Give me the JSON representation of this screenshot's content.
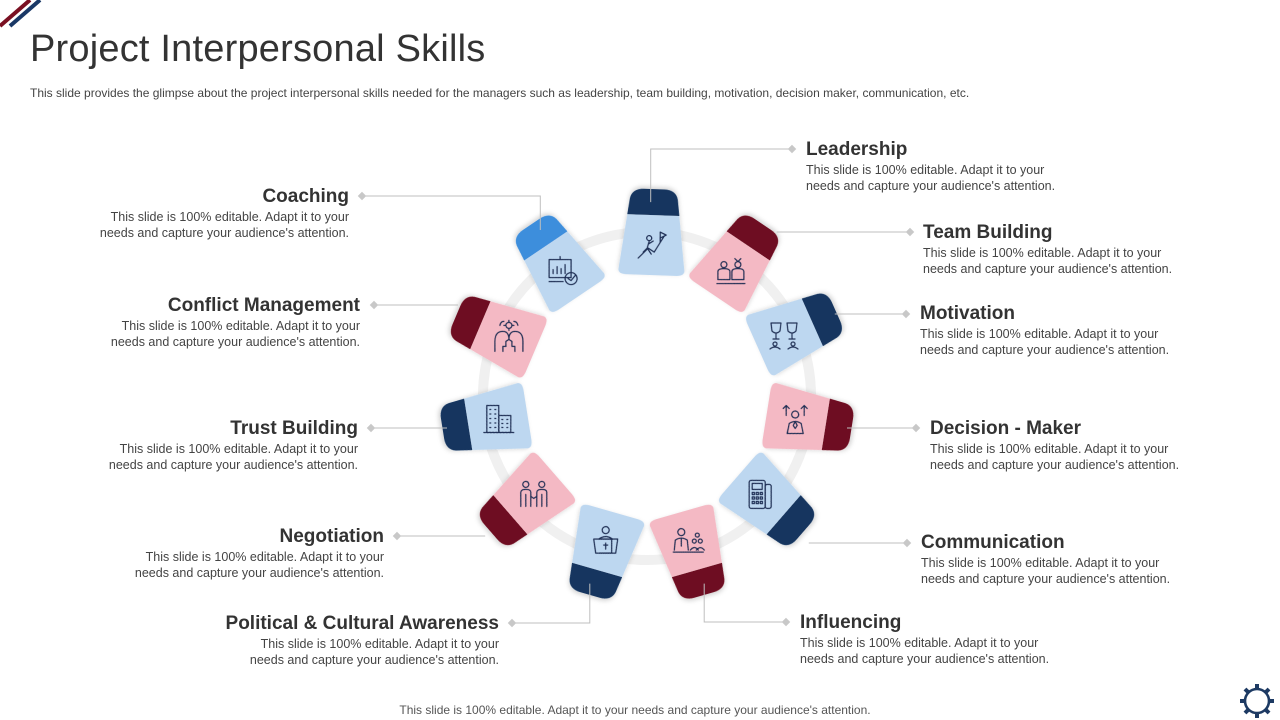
{
  "title": "Project Interpersonal Skills",
  "subtitle": "This slide provides the glimpse about the project interpersonal skills needed for the managers such as leadership, team building, motivation, decision maker, communication, etc.",
  "footer": "This slide is 100% editable. Adapt it to your needs and capture your audience's attention.",
  "colors": {
    "light_blue": "#bdd7f0",
    "light_pink": "#f4b9c4",
    "navy": "#13355e",
    "maroon": "#6e1020",
    "bright_blue": "#3c8edc",
    "ring": "#f0f0f0",
    "icon_stroke": "#1f2f56"
  },
  "skills": [
    {
      "name": "Leadership",
      "line1": "This slide is 100% editable. Adapt it to your",
      "line2": "needs and capture your audience's attention.",
      "color": "blue",
      "icon": "climber-flag-icon"
    },
    {
      "name": "Team Building",
      "line1": "This slide is 100% editable. Adapt it to your",
      "line2": "needs and capture your audience's attention.",
      "color": "pink",
      "icon": "team-people-icon"
    },
    {
      "name": "Motivation",
      "line1": "This slide is 100% editable. Adapt it to your",
      "line2": "needs and capture your audience's attention.",
      "color": "blue",
      "icon": "trophies-icon"
    },
    {
      "name": "Decision - Maker",
      "line1": "This slide is 100% editable. Adapt it to your",
      "line2": "needs and capture your audience's attention.",
      "color": "pink",
      "icon": "decision-person-icon"
    },
    {
      "name": "Communication",
      "line1": "This slide is 100% editable. Adapt it to your",
      "line2": "needs and capture your audience's attention.",
      "color": "blue",
      "icon": "telephone-icon"
    },
    {
      "name": "Influencing",
      "line1": "This slide is 100% editable. Adapt it to your",
      "line2": "needs and capture your audience's attention.",
      "color": "pink",
      "icon": "speaker-audience-icon"
    },
    {
      "name": "Political & Cultural Awareness",
      "line1": "This slide is 100% editable. Adapt it to your",
      "line2": "needs and capture your audience's attention.",
      "color": "blue",
      "icon": "podium-speaker-icon"
    },
    {
      "name": "Negotiation",
      "line1": "This slide is 100% editable. Adapt it to your",
      "line2": "needs and capture your audience's attention.",
      "color": "pink",
      "icon": "handshake-people-icon"
    },
    {
      "name": "Trust Building",
      "line1": "This slide is 100% editable. Adapt it to your",
      "line2": "needs and capture your audience's attention.",
      "color": "blue",
      "icon": "buildings-icon"
    },
    {
      "name": "Conflict Management",
      "line1": "This slide is 100% editable. Adapt it to your",
      "line2": "needs and capture your audience's attention.",
      "color": "pink",
      "icon": "heads-gear-icon"
    },
    {
      "name": "Coaching",
      "line1": "This slide is 100% editable. Adapt it to your",
      "line2": "needs and capture your audience's attention.",
      "color": "blue",
      "icon": "presentation-board-icon"
    }
  ]
}
